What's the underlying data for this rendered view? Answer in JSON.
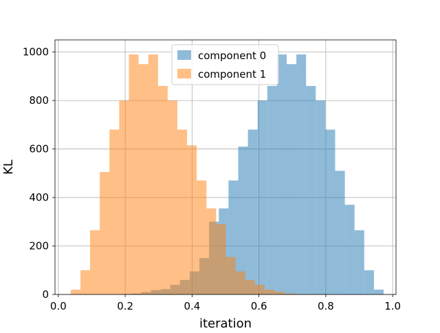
{
  "chart_data": {
    "type": "histogram",
    "title": "",
    "xlabel": "iteration",
    "ylabel": "KL",
    "xlim": [
      -0.01,
      1.01
    ],
    "ylim": [
      0,
      1050
    ],
    "xticks": [
      0.0,
      0.2,
      0.4,
      0.6,
      0.8,
      1.0
    ],
    "xtick_labels": [
      "0.0",
      "0.2",
      "0.4",
      "0.6",
      "0.8",
      "1.0"
    ],
    "yticks": [
      0,
      200,
      400,
      600,
      800,
      1000
    ],
    "ytick_labels": [
      "0",
      "200",
      "400",
      "600",
      "800",
      "1000"
    ],
    "grid": true,
    "legend_position": "top-center",
    "bar_alpha": 0.5,
    "series": [
      {
        "name": "component 0",
        "color": "#1f77b4",
        "bin_edges": [
          0.19,
          0.219,
          0.248,
          0.277,
          0.306,
          0.335,
          0.364,
          0.393,
          0.422,
          0.451,
          0.48,
          0.509,
          0.538,
          0.567,
          0.596,
          0.625,
          0.654,
          0.683,
          0.712,
          0.741,
          0.77,
          0.799,
          0.828,
          0.857,
          0.886,
          0.915,
          0.944,
          0.973
        ],
        "counts": [
          2,
          4,
          10,
          18,
          22,
          40,
          60,
          95,
          150,
          300,
          355,
          470,
          610,
          680,
          800,
          860,
          990,
          950,
          990,
          860,
          800,
          680,
          510,
          370,
          265,
          100,
          20
        ]
      },
      {
        "name": "component 1",
        "color": "#ff7f0e",
        "bin_edges": [
          0.037,
          0.066,
          0.095,
          0.124,
          0.153,
          0.182,
          0.211,
          0.24,
          0.269,
          0.298,
          0.327,
          0.356,
          0.385,
          0.414,
          0.443,
          0.472,
          0.501,
          0.53,
          0.559,
          0.588,
          0.617,
          0.646,
          0.675,
          0.704,
          0.733,
          0.762,
          0.791,
          0.82
        ],
        "counts": [
          20,
          100,
          265,
          505,
          680,
          800,
          990,
          950,
          990,
          860,
          800,
          680,
          615,
          470,
          355,
          290,
          155,
          95,
          60,
          40,
          20,
          12,
          4,
          2,
          1,
          1,
          0
        ]
      }
    ]
  }
}
